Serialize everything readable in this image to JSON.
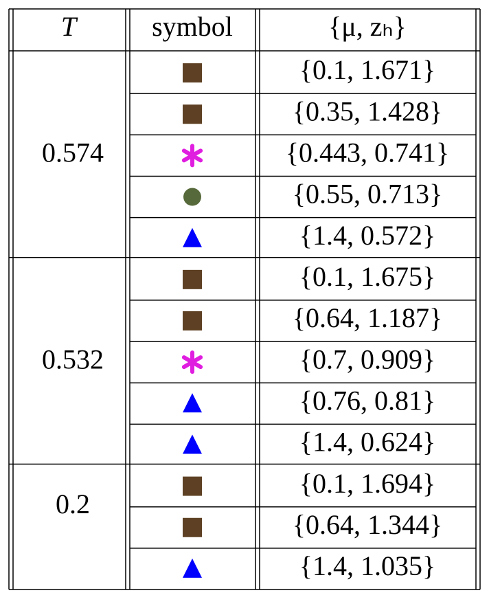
{
  "table": {
    "header": [
      "T",
      "symbol",
      "{μ, zₕ}"
    ],
    "groups": [
      {
        "T": 0.574,
        "rows": [
          "{0.1, 1.671}",
          "{0.35, 1.428}",
          "{0.443, 0.741}",
          "{0.55, 0.713}",
          "{1.4, 0.572}"
        ]
      },
      {
        "T": 0.532,
        "rows": [
          "{0.1, 1.675}",
          "{0.64, 1.187}",
          "{0.7, 0.909}",
          "{0.76, 0.81}",
          "{1.4, 0.624}"
        ]
      },
      {
        "T": 0.2,
        "rows": [
          "{0.1, 1.694}",
          "{0.64, 1.344}",
          "{1.4, 1.035}"
        ]
      }
    ]
  }
}
